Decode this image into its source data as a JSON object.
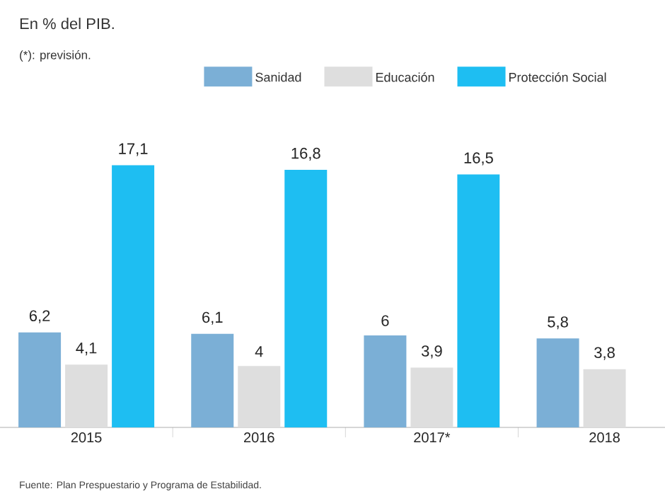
{
  "chart_data": {
    "type": "bar",
    "title": "En % del PIB.",
    "subtitle": "(*): previsión.",
    "categories": [
      "2015",
      "2016",
      "2017*",
      "2018"
    ],
    "series": [
      {
        "name": "Sanidad",
        "color": "#7bafd6",
        "values": [
          6.2,
          6.1,
          6,
          5.8
        ],
        "value_labels": [
          "6,2",
          "6,1",
          "6",
          "5,8"
        ]
      },
      {
        "name": "Educación",
        "color": "#dedede",
        "values": [
          4.1,
          4,
          3.9,
          3.8
        ],
        "value_labels": [
          "4,1",
          "4",
          "3,9",
          "3,8"
        ]
      },
      {
        "name": "Protección Social",
        "color": "#1ebef2",
        "values": [
          17.1,
          16.8,
          16.5,
          null
        ],
        "value_labels": [
          "17,1",
          "16,8",
          "16,5",
          null
        ]
      }
    ],
    "legend": "top",
    "annotations": [
      "Fuente: Plan Prespuestario y Programa de Estabilidad."
    ]
  }
}
